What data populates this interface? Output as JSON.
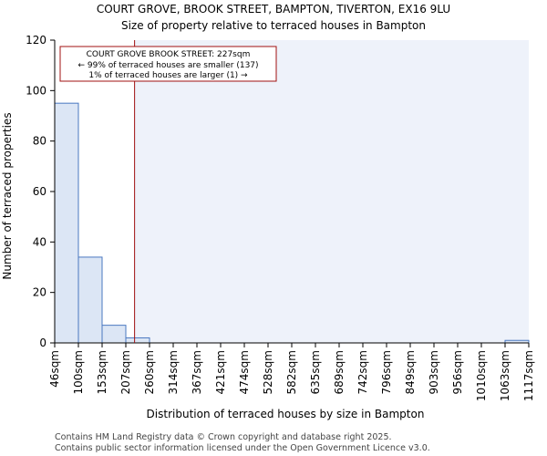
{
  "chart_data": {
    "type": "bar",
    "title_line1": "COURT GROVE, BROOK STREET, BAMPTON, TIVERTON, EX16 9LU",
    "title_line2": "Size of property relative to terraced houses in Bampton",
    "xlabel": "Distribution of terraced houses by size in Bampton",
    "ylabel": "Number of terraced properties",
    "bin_edges": [
      "46sqm",
      "100sqm",
      "153sqm",
      "207sqm",
      "260sqm",
      "314sqm",
      "367sqm",
      "421sqm",
      "474sqm",
      "528sqm",
      "582sqm",
      "635sqm",
      "689sqm",
      "742sqm",
      "796sqm",
      "849sqm",
      "903sqm",
      "956sqm",
      "1010sqm",
      "1063sqm",
      "1117sqm"
    ],
    "values": [
      95,
      34,
      7,
      2,
      0,
      0,
      0,
      0,
      0,
      0,
      0,
      0,
      0,
      0,
      0,
      0,
      0,
      0,
      0,
      1
    ],
    "ylim": [
      0,
      120
    ],
    "yticks": [
      0,
      20,
      40,
      60,
      80,
      100,
      120
    ],
    "marker": {
      "value_bin": 3.37,
      "label": "COURT GROVE BROOK STREET: 227sqm",
      "smaller": "← 99% of terraced houses are smaller (137)",
      "larger": "1% of terraced houses are larger (1) →"
    },
    "colors": {
      "bar_fill": "#dce6f5",
      "bar_stroke": "#4a78c0",
      "shade": "#eef2fa",
      "marker": "#a01010"
    }
  },
  "footer": {
    "line1": "Contains HM Land Registry data © Crown copyright and database right 2025.",
    "line2": "Contains public sector information licensed under the Open Government Licence v3.0."
  }
}
